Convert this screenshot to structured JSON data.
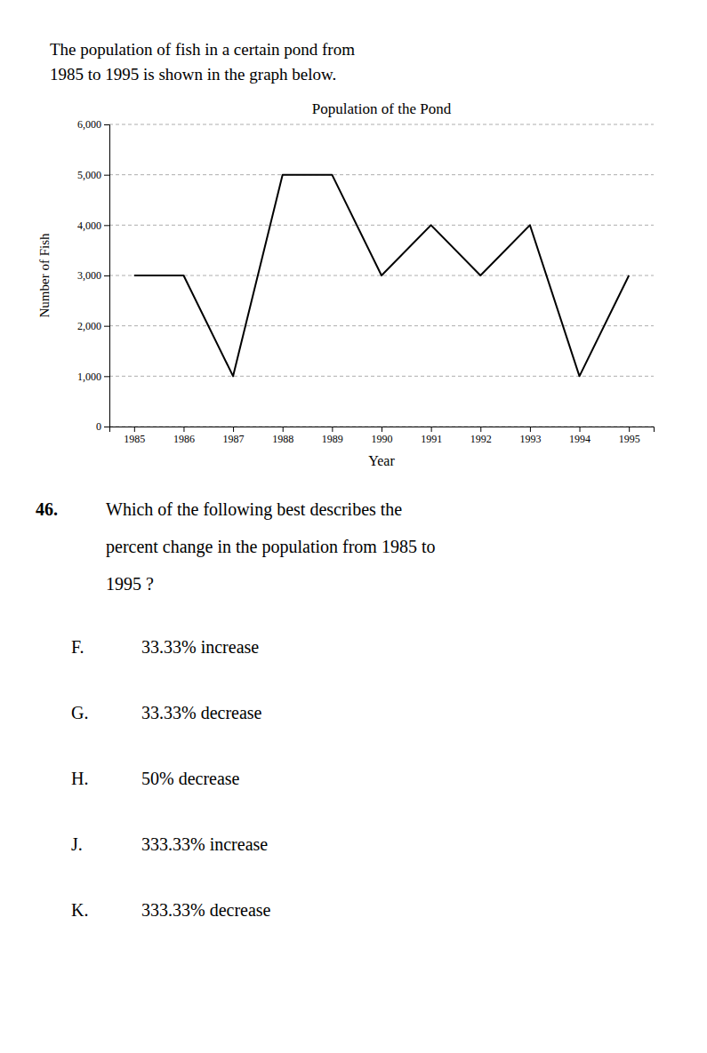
{
  "intro": [
    "The population of fish in a certain pond from",
    "1985 to 1995 is shown in the graph below."
  ],
  "chart_data": {
    "type": "line",
    "title": "Population of the Pond",
    "xlabel": "Year",
    "ylabel": "Number of Fish",
    "x": [
      1985,
      1986,
      1987,
      1988,
      1989,
      1990,
      1991,
      1992,
      1993,
      1994,
      1995
    ],
    "values": [
      3000,
      3000,
      1000,
      5000,
      5000,
      3000,
      4000,
      3000,
      4000,
      1000,
      3000
    ],
    "color": "black",
    "xlim": [
      1984.5,
      1995.5
    ],
    "xticks": [
      1985,
      1986,
      1987,
      1988,
      1989,
      1990,
      1991,
      1992,
      1993,
      1994,
      1995
    ],
    "ylim": [
      0,
      6000
    ],
    "yticks": [
      0,
      {
        "value": 1000,
        "label": "1,000"
      },
      {
        "value": 2000,
        "label": "2,000"
      },
      {
        "value": 3000,
        "label": "3,000"
      },
      {
        "value": 4000,
        "label": "4,000"
      },
      {
        "value": 5000,
        "label": "5,000"
      },
      {
        "value": 6000,
        "label": "6,000"
      }
    ],
    "grid": true
  },
  "question_number": "46.",
  "question": [
    "Which of the following best describes the",
    "percent change in the population from 1985 to",
    "1995 ?"
  ],
  "choices": [
    [
      "F.",
      "33.33% increase"
    ],
    [
      "G.",
      "33.33% decrease"
    ],
    [
      "H.",
      "50% decrease"
    ],
    [
      "J.",
      "333.33% increase"
    ],
    [
      "K.",
      "333.33% decrease"
    ]
  ]
}
